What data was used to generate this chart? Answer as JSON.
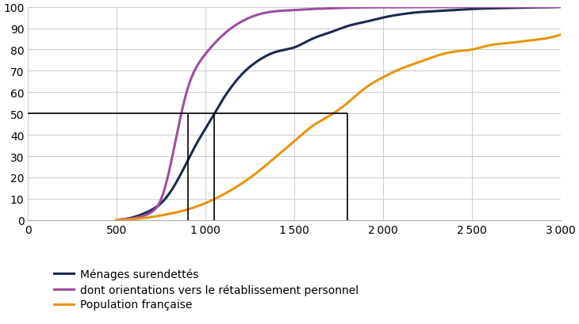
{
  "background_color": "#ffffff",
  "xlim": [
    0,
    3000
  ],
  "ylim": [
    0,
    100
  ],
  "xticks": [
    0,
    500,
    1000,
    1500,
    2000,
    2500,
    3000
  ],
  "yticks": [
    0,
    10,
    20,
    30,
    40,
    50,
    60,
    70,
    80,
    90,
    100
  ],
  "menages_color": "#1c2b4b",
  "orientations_color": "#9b4f9e",
  "population_color": "#e89510",
  "menages_label": "Ménages surendettés",
  "orientations_label": "dont orientations vers le rétablissement personnel",
  "population_label": "Population française",
  "hline_y": 50,
  "vline_x1": 900,
  "vline_x2": 1050,
  "vline_x3": 1800,
  "menages_x": [
    500,
    550,
    600,
    650,
    700,
    750,
    800,
    850,
    900,
    950,
    1000,
    1050,
    1100,
    1150,
    1200,
    1300,
    1400,
    1500,
    1600,
    1700,
    1800,
    1900,
    2000,
    2100,
    2200,
    2300,
    2400,
    2500,
    2600,
    2700,
    2800,
    2900,
    3000
  ],
  "menages_y": [
    0,
    0.5,
    1.5,
    3,
    5,
    8,
    13,
    20,
    28,
    36,
    43,
    50,
    57,
    63,
    68,
    75,
    79,
    81,
    85,
    88,
    91,
    93,
    95,
    96.5,
    97.5,
    98,
    98.5,
    99,
    99.3,
    99.5,
    99.7,
    99.8,
    100
  ],
  "orientations_x": [
    500,
    550,
    600,
    650,
    700,
    750,
    800,
    850,
    900,
    950,
    1000,
    1100,
    1200,
    1300,
    1400,
    1500,
    1600,
    1700,
    1800,
    2000,
    2500,
    3000
  ],
  "orientations_y": [
    0,
    0.5,
    1,
    2,
    4,
    10,
    25,
    45,
    62,
    72,
    78,
    87,
    93,
    96.5,
    98,
    98.5,
    99,
    99.3,
    99.6,
    99.8,
    100,
    100
  ],
  "population_x": [
    500,
    600,
    700,
    800,
    900,
    1000,
    1100,
    1200,
    1300,
    1400,
    1500,
    1600,
    1700,
    1800,
    1900,
    2000,
    2100,
    2200,
    2300,
    2400,
    2500,
    2600,
    2700,
    2800,
    2900,
    3000
  ],
  "population_y": [
    0,
    0.5,
    1.5,
    3,
    5,
    8,
    12,
    17,
    23,
    30,
    37,
    44,
    49,
    55,
    62,
    67,
    71,
    74,
    77,
    79,
    80,
    82,
    83,
    84,
    85,
    87
  ],
  "line_width": 2.2,
  "legend_fontsize": 10,
  "tick_fontsize": 10,
  "figsize": [
    7.3,
    4.1
  ],
  "dpi": 100
}
